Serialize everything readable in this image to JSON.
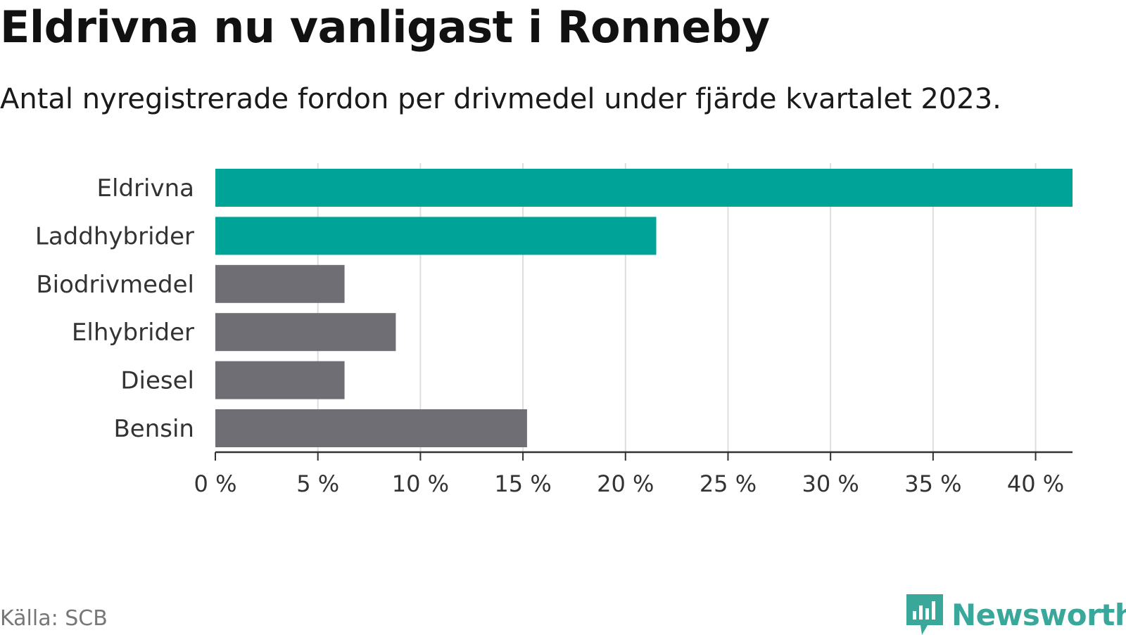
{
  "header": {
    "title": "Eldrivna nu vanligast i Ronneby",
    "subtitle": "Antal nyregistrerade fordon per drivmedel under fjärde kvartalet 2023."
  },
  "footer": {
    "source": "Källa: SCB",
    "brand": "Newsworthy"
  },
  "colors": {
    "highlight": "#00a398",
    "muted": "#6f6e75",
    "grid": "#dddddd",
    "axis": "#333333",
    "brand": "#3aa79b"
  },
  "chart_data": {
    "type": "bar",
    "orientation": "horizontal",
    "title": "Eldrivna nu vanligast i Ronneby",
    "subtitle": "Antal nyregistrerade fordon per drivmedel under fjärde kvartalet 2023.",
    "xlabel": "",
    "ylabel": "",
    "unit": "%",
    "xlim": [
      0,
      41.8
    ],
    "ticks": [
      0,
      5,
      10,
      15,
      20,
      25,
      30,
      35,
      40
    ],
    "tick_labels": [
      "0 %",
      "5 %",
      "10 %",
      "15 %",
      "20 %",
      "25 %",
      "30 %",
      "35 %",
      "40 %"
    ],
    "grid": true,
    "categories": [
      "Eldrivna",
      "Laddhybrider",
      "Biodrivmedel",
      "Elhybrider",
      "Diesel",
      "Bensin"
    ],
    "values": [
      41.8,
      21.5,
      6.3,
      8.8,
      6.3,
      15.2
    ],
    "highlighted": [
      true,
      true,
      false,
      false,
      false,
      false
    ]
  }
}
